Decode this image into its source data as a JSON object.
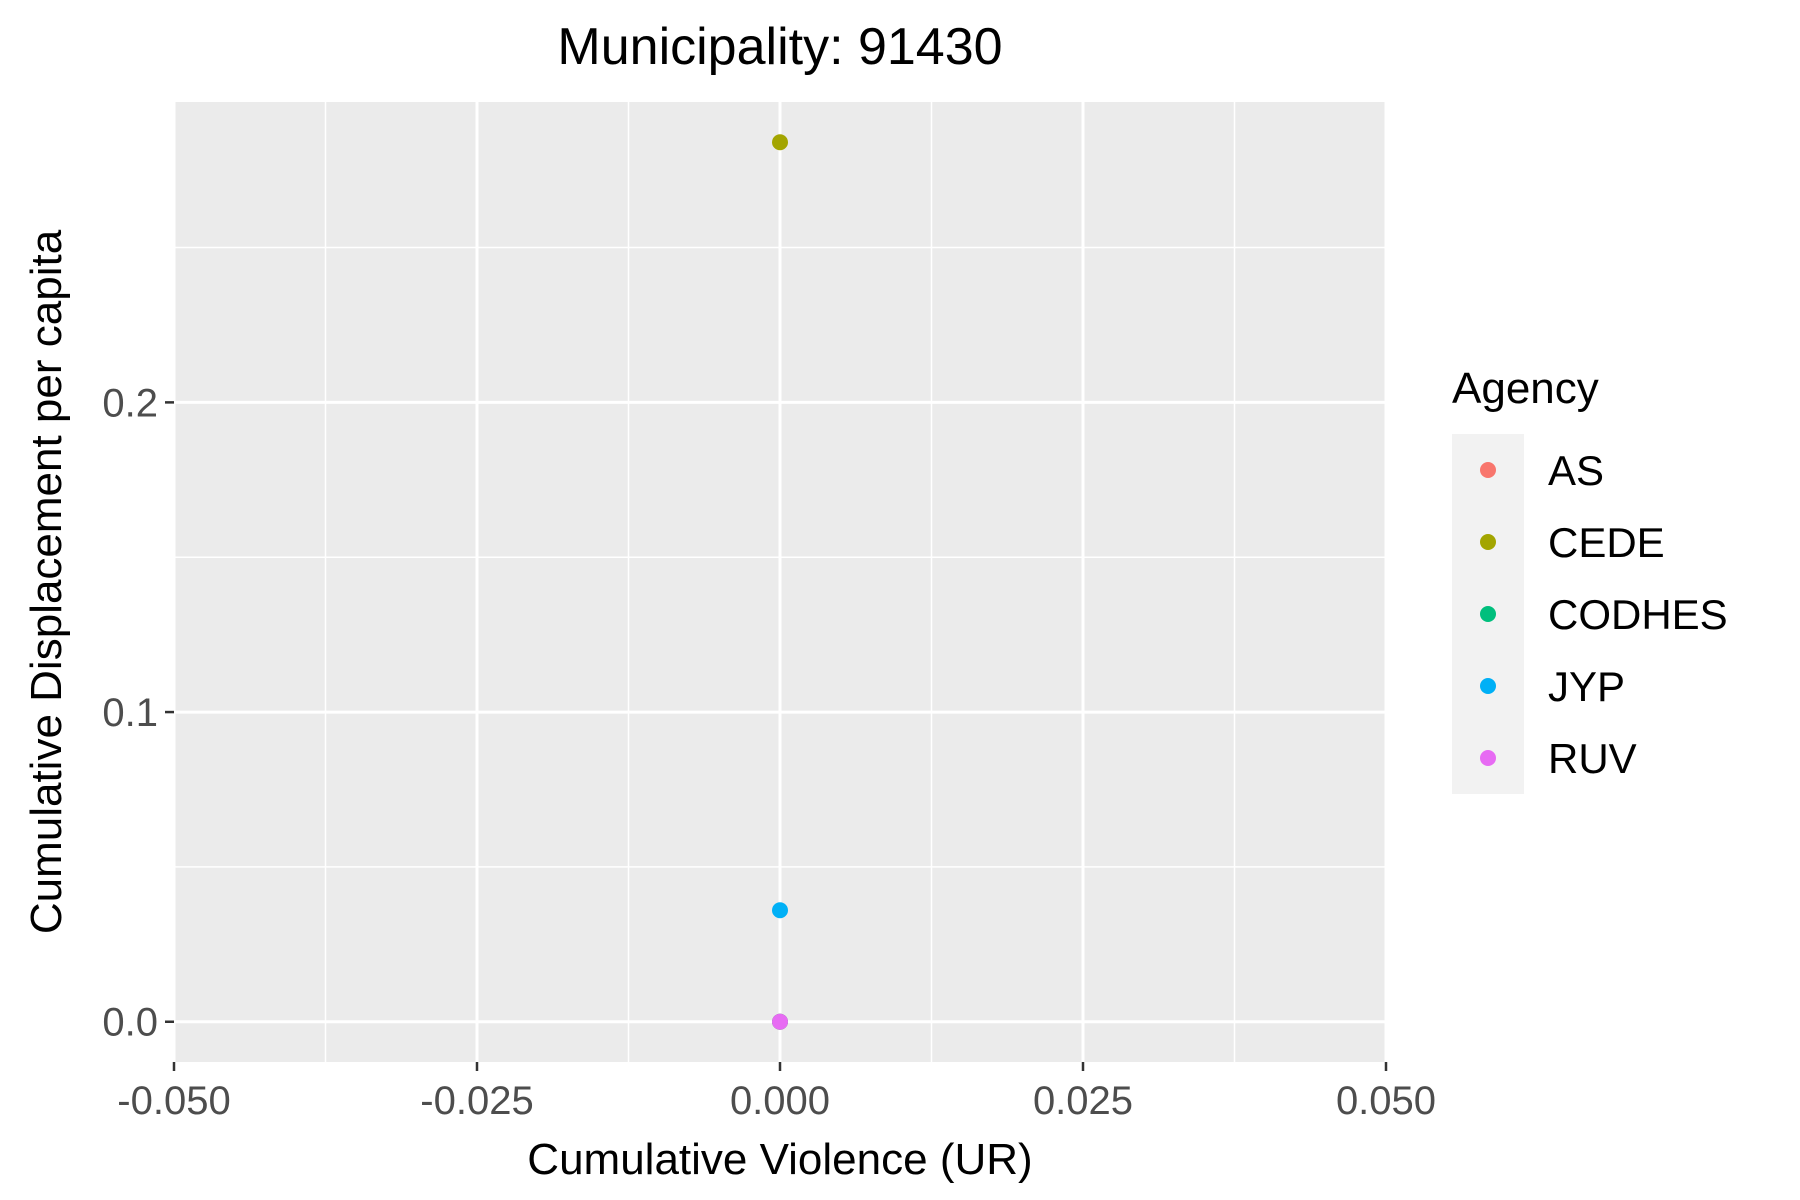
{
  "chart_data": {
    "type": "scatter",
    "title": "Municipality: 91430",
    "xlabel": "Cumulative Violence (UR)",
    "ylabel": "Cumulative Displacement per capita",
    "xlim": [
      -0.05,
      0.05
    ],
    "ylim": [
      -0.013,
      0.297
    ],
    "x_ticks": [
      -0.05,
      -0.025,
      0.0,
      0.025,
      0.05
    ],
    "x_tick_labels": [
      "-0.050",
      "-0.025",
      "0.000",
      "0.025",
      "0.050"
    ],
    "y_ticks": [
      0.0,
      0.1,
      0.2
    ],
    "y_tick_labels": [
      "0.0",
      "0.1",
      "0.2"
    ],
    "grid": true,
    "panel_background": "#ebebeb",
    "legend": {
      "title": "Agency",
      "position": "right",
      "entries": [
        {
          "name": "AS",
          "color": "#f8766d"
        },
        {
          "name": "CEDE",
          "color": "#a3a500"
        },
        {
          "name": "CODHES",
          "color": "#00bf7d"
        },
        {
          "name": "JYP",
          "color": "#00b0f6"
        },
        {
          "name": "RUV",
          "color": "#e76bf3"
        }
      ]
    },
    "series": [
      {
        "name": "AS",
        "color": "#f8766d",
        "points": [
          {
            "x": 0.0,
            "y": 0.0
          }
        ]
      },
      {
        "name": "CODHES",
        "color": "#00bf7d",
        "points": [
          {
            "x": 0.0,
            "y": 0.0
          }
        ]
      },
      {
        "name": "RUV",
        "color": "#e76bf3",
        "points": [
          {
            "x": 0.0,
            "y": 0.0
          }
        ]
      },
      {
        "name": "JYP",
        "color": "#00b0f6",
        "points": [
          {
            "x": 0.0,
            "y": 0.036
          }
        ]
      },
      {
        "name": "CEDE",
        "color": "#a3a500",
        "points": [
          {
            "x": 0.0,
            "y": 0.284
          }
        ]
      }
    ]
  }
}
